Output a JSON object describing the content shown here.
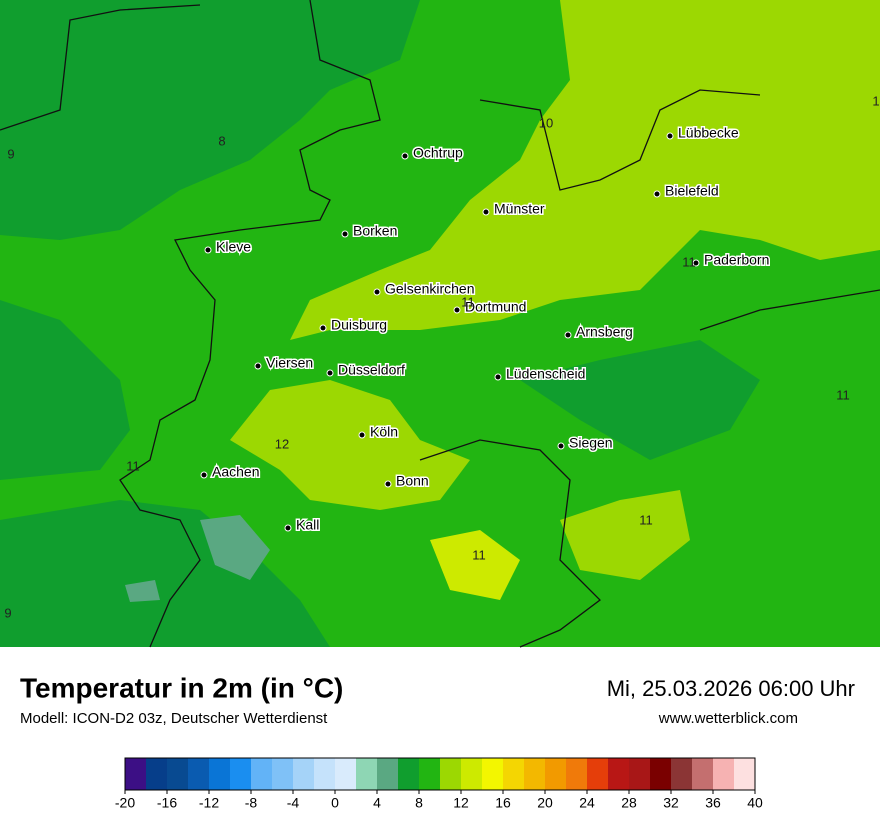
{
  "header": {
    "title": "Temperatur in 2m (in °C)",
    "subtitle": "Modell: ICON-D2 03z, Deutscher Wetterdienst",
    "datetime": "Mi, 25.03.2026 06:00 Uhr",
    "website": "www.wetterblick.com"
  },
  "cities": [
    "Lübbecke",
    "Ochtrup",
    "Bielefeld",
    "Münster",
    "Borken",
    "Kleve",
    "Paderborn",
    "Gelsenkirchen",
    "Dortmund",
    "Duisburg",
    "Arnsberg",
    "Viersen",
    "Düsseldorf",
    "Lüdenscheid",
    "Köln",
    "Siegen",
    "Aachen",
    "Bonn",
    "Kall"
  ],
  "contour_labels": [
    "8",
    "9",
    "10",
    "11",
    "11",
    "12",
    "11",
    "11",
    "11",
    "11",
    "9",
    "1"
  ],
  "colorbar": {
    "min": -20,
    "max": 40,
    "ticks": [
      -20,
      -16,
      -12,
      -8,
      -4,
      0,
      4,
      8,
      12,
      16,
      20,
      24,
      28,
      32,
      36,
      40
    ],
    "colors": [
      "#3c0f85",
      "#063e8a",
      "#084a91",
      "#0a5bb0",
      "#0a75d6",
      "#1a8ef0",
      "#62b3f7",
      "#7fc1f7",
      "#a5d3f8",
      "#c5e2fb",
      "#d9ebfc",
      "#8ed6b4",
      "#5aa882",
      "#109e2e",
      "#22b512",
      "#9cd802",
      "#cdea00",
      "#f3f600",
      "#f4d602",
      "#f3b800",
      "#f29a00",
      "#f07a0a",
      "#e53e0a",
      "#b81715",
      "#a81717",
      "#7a0000",
      "#8b3535",
      "#c46f6f",
      "#f6b2b2",
      "#fde0e0"
    ]
  }
}
